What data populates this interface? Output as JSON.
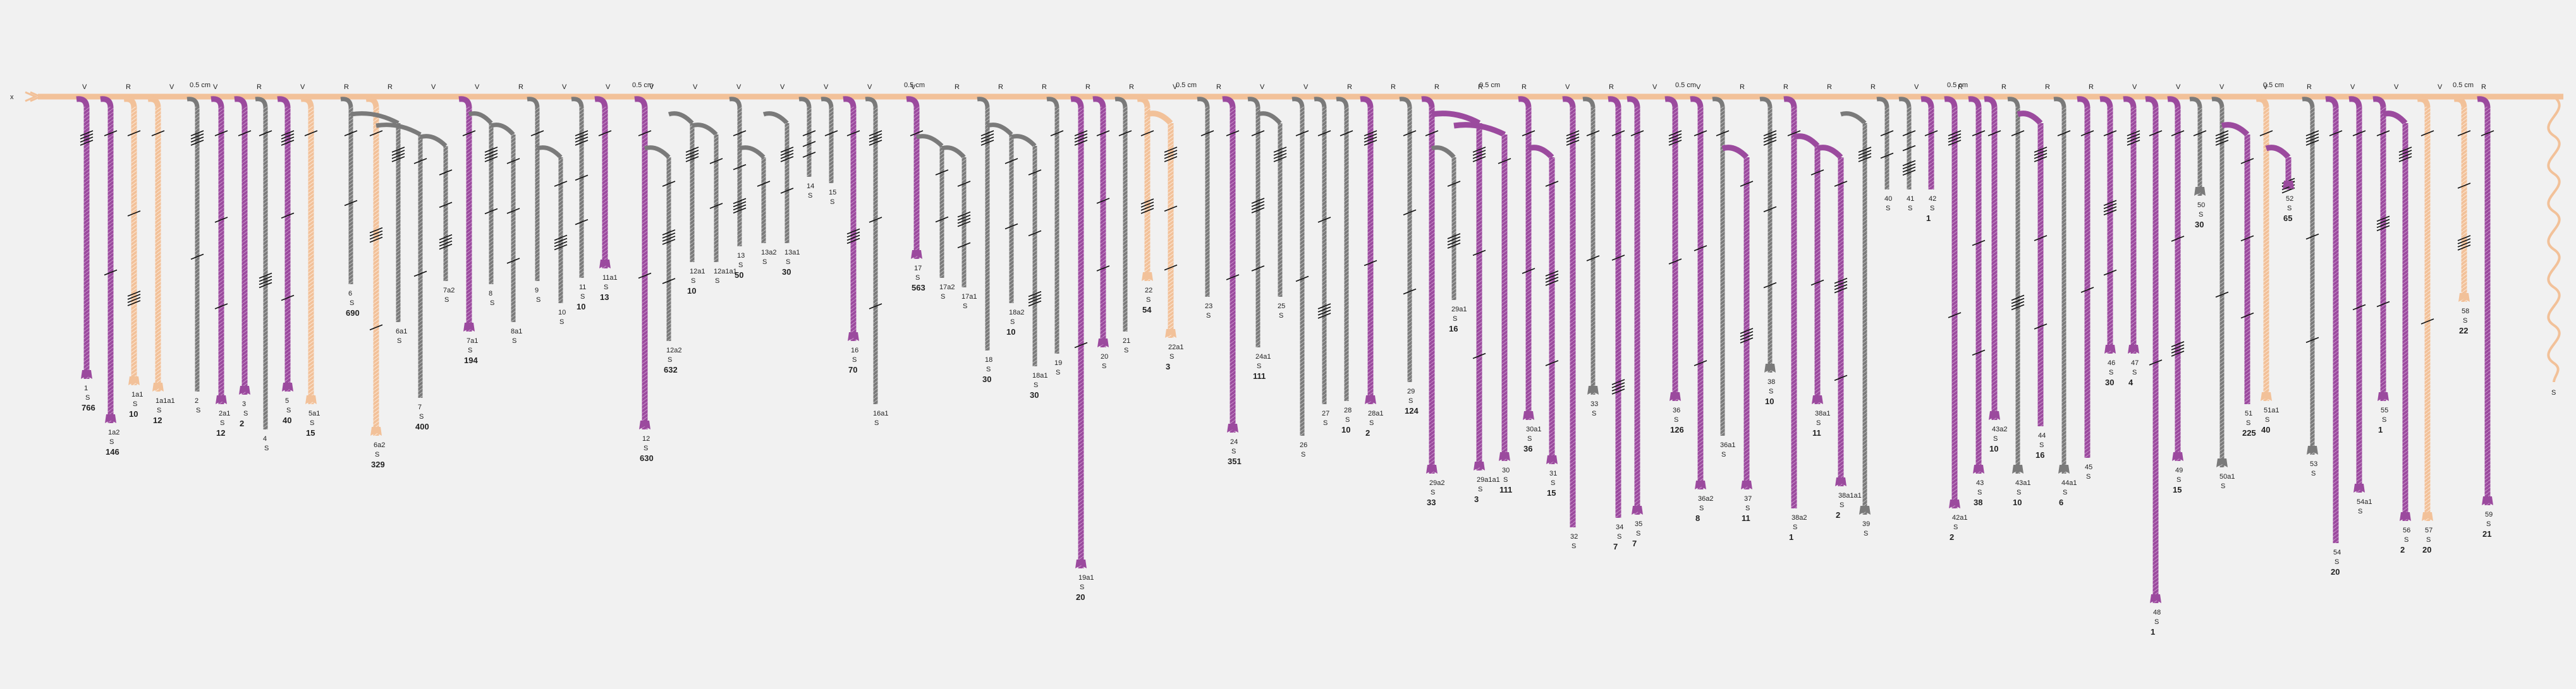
{
  "scale_label": "0.5 cm",
  "axis_left_label": "x",
  "colors": {
    "background": "#f1f1f1",
    "main_axis": "#f2c199",
    "purple": "#9b4a9e",
    "gray": "#7a7a7a",
    "peach": "#f2c199",
    "hatch": "#111111"
  },
  "top_ticks": [
    "V",
    "R",
    "V",
    "V",
    "R",
    "V",
    "R",
    "R",
    "V",
    "V",
    "R",
    "V",
    "V",
    "V",
    "V",
    "V",
    "V",
    "V",
    "V",
    "V",
    "R",
    "R",
    "R",
    "R",
    "R",
    "V",
    "R",
    "V",
    "V",
    "R",
    "R",
    "R",
    "R",
    "R",
    "V",
    "R",
    "V",
    "V",
    "R",
    "R",
    "R",
    "R",
    "V",
    "R",
    "R",
    "R",
    "R",
    "V",
    "V",
    "V",
    "V",
    "R",
    "V",
    "V",
    "V",
    "R"
  ],
  "stems": [
    {
      "color": "purple",
      "tag": "1",
      "sub": "S",
      "count": "766"
    },
    {
      "color": "purple",
      "tag": "1a2",
      "sub": "S",
      "count": "146"
    },
    {
      "color": "peach",
      "tag": "1a1",
      "sub": "S",
      "count": "10"
    },
    {
      "color": "peach",
      "tag": "1a1a1",
      "sub": "S",
      "count": "12"
    },
    {
      "color": "gray",
      "tag": "2",
      "sub": "S",
      "count": ""
    },
    {
      "color": "purple",
      "tag": "2a1",
      "sub": "S",
      "count": "12"
    },
    {
      "color": "purple",
      "tag": "3",
      "sub": "S",
      "count": "2"
    },
    {
      "color": "gray",
      "tag": "4",
      "sub": "S",
      "count": ""
    },
    {
      "color": "purple",
      "tag": "5",
      "sub": "S",
      "count": "40"
    },
    {
      "color": "peach",
      "tag": "5a1",
      "sub": "S",
      "count": "15"
    },
    {
      "color": "gray",
      "tag": "6",
      "sub": "S",
      "count": "690"
    },
    {
      "color": "peach",
      "tag": "6a2",
      "sub": "S",
      "count": "329"
    },
    {
      "color": "gray",
      "tag": "6a1",
      "sub": "S",
      "count": ""
    },
    {
      "color": "gray",
      "tag": "7",
      "sub": "S",
      "count": "400"
    },
    {
      "color": "gray",
      "tag": "7a2",
      "sub": "S",
      "count": ""
    },
    {
      "color": "purple",
      "tag": "7a1",
      "sub": "S",
      "count": "194"
    },
    {
      "color": "gray",
      "tag": "8",
      "sub": "S",
      "count": ""
    },
    {
      "color": "gray",
      "tag": "8a1",
      "sub": "S",
      "count": ""
    },
    {
      "color": "gray",
      "tag": "9",
      "sub": "S",
      "count": ""
    },
    {
      "color": "gray",
      "tag": "10",
      "sub": "S",
      "count": ""
    },
    {
      "color": "gray",
      "tag": "11",
      "sub": "S",
      "count": "10"
    },
    {
      "color": "purple",
      "tag": "11a1",
      "sub": "S",
      "count": "13"
    },
    {
      "color": "purple",
      "tag": "12",
      "sub": "S",
      "count": "630"
    },
    {
      "color": "gray",
      "tag": "12a2",
      "sub": "S",
      "count": "632"
    },
    {
      "color": "gray",
      "tag": "12a1",
      "sub": "S",
      "count": "10"
    },
    {
      "color": "gray",
      "tag": "12a1a1",
      "sub": "S",
      "count": ""
    },
    {
      "color": "gray",
      "tag": "13",
      "sub": "S",
      "count": "50"
    },
    {
      "color": "gray",
      "tag": "13a2",
      "sub": "S",
      "count": ""
    },
    {
      "color": "gray",
      "tag": "13a1",
      "sub": "S",
      "count": "30"
    },
    {
      "color": "gray",
      "tag": "14",
      "sub": "S",
      "count": ""
    },
    {
      "color": "gray",
      "tag": "15",
      "sub": "S",
      "count": ""
    },
    {
      "color": "purple",
      "tag": "16",
      "sub": "S",
      "count": "70"
    },
    {
      "color": "gray",
      "tag": "16a1",
      "sub": "S",
      "count": ""
    },
    {
      "color": "purple",
      "tag": "17",
      "sub": "S",
      "count": "563"
    },
    {
      "color": "gray",
      "tag": "17a2",
      "sub": "S",
      "count": ""
    },
    {
      "color": "gray",
      "tag": "17a1",
      "sub": "S",
      "count": ""
    },
    {
      "color": "gray",
      "tag": "18",
      "sub": "S",
      "count": "30"
    },
    {
      "color": "gray",
      "tag": "18a2",
      "sub": "S",
      "count": "10"
    },
    {
      "color": "gray",
      "tag": "18a1",
      "sub": "S",
      "count": "30"
    },
    {
      "color": "gray",
      "tag": "19",
      "sub": "S",
      "count": ""
    },
    {
      "color": "purple",
      "tag": "19a1",
      "sub": "S",
      "count": "20"
    },
    {
      "color": "purple",
      "tag": "20",
      "sub": "S",
      "count": ""
    },
    {
      "color": "gray",
      "tag": "21",
      "sub": "S",
      "count": ""
    },
    {
      "color": "peach",
      "tag": "22",
      "sub": "S",
      "count": "54"
    },
    {
      "color": "peach",
      "tag": "22a1",
      "sub": "S",
      "count": "3"
    },
    {
      "color": "gray",
      "tag": "23",
      "sub": "S",
      "count": ""
    },
    {
      "color": "purple",
      "tag": "24",
      "sub": "S",
      "count": "351"
    },
    {
      "color": "gray",
      "tag": "24a1",
      "sub": "S",
      "count": "111"
    },
    {
      "color": "gray",
      "tag": "25",
      "sub": "S",
      "count": ""
    },
    {
      "color": "gray",
      "tag": "26",
      "sub": "S",
      "count": ""
    },
    {
      "color": "gray",
      "tag": "27",
      "sub": "S",
      "count": ""
    },
    {
      "color": "gray",
      "tag": "28",
      "sub": "S",
      "count": "10"
    },
    {
      "color": "purple",
      "tag": "28a1",
      "sub": "S",
      "count": "2"
    },
    {
      "color": "gray",
      "tag": "29",
      "sub": "S",
      "count": "124"
    },
    {
      "color": "purple",
      "tag": "29a2",
      "sub": "S",
      "count": "33"
    },
    {
      "color": "gray",
      "tag": "29a1",
      "sub": "S",
      "count": "16"
    },
    {
      "color": "purple",
      "tag": "29a1a1",
      "sub": "S",
      "count": "3"
    },
    {
      "color": "purple",
      "tag": "30",
      "sub": "S",
      "count": "111"
    },
    {
      "color": "purple",
      "tag": "30a1",
      "sub": "S",
      "count": "36"
    },
    {
      "color": "purple",
      "tag": "31",
      "sub": "S",
      "count": "15"
    },
    {
      "color": "purple",
      "tag": "32",
      "sub": "S",
      "count": ""
    },
    {
      "color": "gray",
      "tag": "33",
      "sub": "S",
      "count": ""
    },
    {
      "color": "purple",
      "tag": "34",
      "sub": "S",
      "count": "7"
    },
    {
      "color": "purple",
      "tag": "35",
      "sub": "S",
      "count": "7"
    },
    {
      "color": "purple",
      "tag": "36",
      "sub": "S",
      "count": "126"
    },
    {
      "color": "purple",
      "tag": "36a2",
      "sub": "S",
      "count": "8"
    },
    {
      "color": "gray",
      "tag": "36a1",
      "sub": "S",
      "count": ""
    },
    {
      "color": "purple",
      "tag": "37",
      "sub": "S",
      "count": "11"
    },
    {
      "color": "gray",
      "tag": "38",
      "sub": "S",
      "count": "10"
    },
    {
      "color": "purple",
      "tag": "38a2",
      "sub": "S",
      "count": "1"
    },
    {
      "color": "purple",
      "tag": "38a1",
      "sub": "S",
      "count": "11"
    },
    {
      "color": "purple",
      "tag": "38a1a1",
      "sub": "S",
      "count": "2"
    },
    {
      "color": "gray",
      "tag": "39",
      "sub": "S",
      "count": ""
    },
    {
      "color": "gray",
      "tag": "40",
      "sub": "S",
      "count": ""
    },
    {
      "color": "gray",
      "tag": "41",
      "sub": "S",
      "count": ""
    },
    {
      "color": "purple",
      "tag": "42",
      "sub": "S",
      "count": "1"
    },
    {
      "color": "purple",
      "tag": "42a1",
      "sub": "S",
      "count": "2"
    },
    {
      "color": "purple",
      "tag": "43",
      "sub": "S",
      "count": "38"
    },
    {
      "color": "purple",
      "tag": "43a2",
      "sub": "S",
      "count": "10"
    },
    {
      "color": "gray",
      "tag": "43a1",
      "sub": "S",
      "count": "10"
    },
    {
      "color": "purple",
      "tag": "44",
      "sub": "S",
      "count": "16"
    },
    {
      "color": "gray",
      "tag": "44a1",
      "sub": "S",
      "count": "6"
    },
    {
      "color": "purple",
      "tag": "45",
      "sub": "S",
      "count": ""
    },
    {
      "color": "purple",
      "tag": "46",
      "sub": "S",
      "count": "30"
    },
    {
      "color": "purple",
      "tag": "47",
      "sub": "S",
      "count": "4"
    },
    {
      "color": "purple",
      "tag": "48",
      "sub": "S",
      "count": "1"
    },
    {
      "color": "purple",
      "tag": "49",
      "sub": "S",
      "count": "15"
    },
    {
      "color": "gray",
      "tag": "50",
      "sub": "S",
      "count": "30"
    },
    {
      "color": "gray",
      "tag": "50a1",
      "sub": "S",
      "count": ""
    },
    {
      "color": "purple",
      "tag": "51",
      "sub": "S",
      "count": "225"
    },
    {
      "color": "peach",
      "tag": "51a1",
      "sub": "S",
      "count": "40"
    },
    {
      "color": "purple",
      "tag": "52",
      "sub": "S",
      "count": "65"
    },
    {
      "color": "gray",
      "tag": "53",
      "sub": "S",
      "count": ""
    },
    {
      "color": "purple",
      "tag": "54",
      "sub": "S",
      "count": "20"
    },
    {
      "color": "purple",
      "tag": "54a1",
      "sub": "S",
      "count": ""
    },
    {
      "color": "purple",
      "tag": "55",
      "sub": "S",
      "count": "1"
    },
    {
      "color": "purple",
      "tag": "56",
      "sub": "S",
      "count": "2"
    },
    {
      "color": "peach",
      "tag": "57",
      "sub": "S",
      "count": "20"
    },
    {
      "color": "peach",
      "tag": "58",
      "sub": "S",
      "count": "22"
    },
    {
      "color": "purple",
      "tag": "59",
      "sub": "S",
      "count": "21"
    }
  ]
}
